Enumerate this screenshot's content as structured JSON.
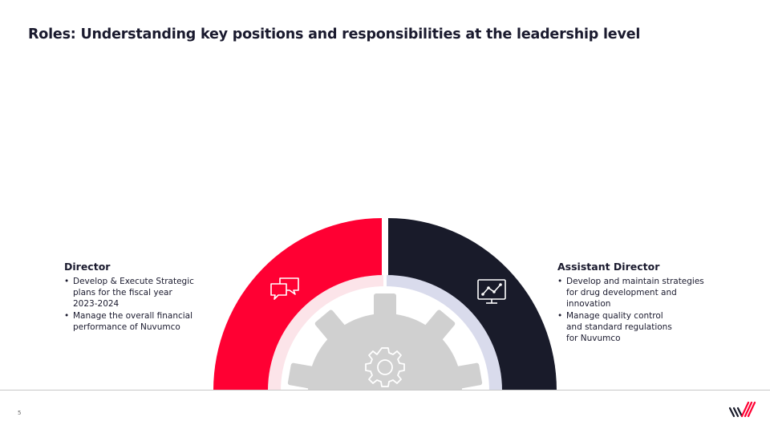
{
  "slide": {
    "title": "Roles: Understanding key positions and responsibilities at the leadership level",
    "page_number": "5"
  },
  "roles": [
    {
      "title": "Director",
      "icon": "chat-bubbles-icon",
      "color": "#FF0033",
      "bullets": [
        "Develop & Execute Strategic\nplans for the fiscal year\n2023-2024",
        "Manage the overall financial\nperformance of Nuvumco"
      ]
    },
    {
      "title": "Assistant Director",
      "icon": "chart-monitor-icon",
      "color": "#191B2A",
      "bullets": [
        "Develop and maintain strategies\nfor drug development and\ninnovation",
        "Manage quality control\nand standard regulations\nfor Nuvumco"
      ]
    }
  ],
  "center_icon": "gear-icon",
  "colors": {
    "accent_red": "#FF0033",
    "navy": "#191B2A",
    "light_pink": "#FCE4E9",
    "light_lavender": "#D9DBEC",
    "gear_gray": "#D0D0D0"
  },
  "logo": "company-logo"
}
